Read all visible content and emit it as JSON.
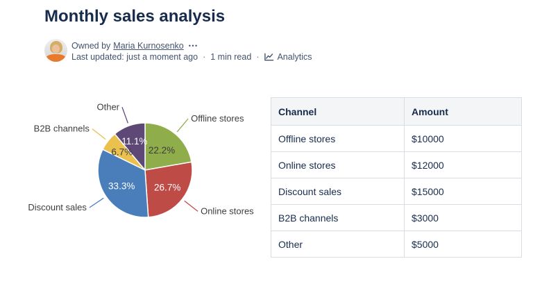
{
  "page": {
    "title": "Monthly sales analysis"
  },
  "byline": {
    "owned_by_prefix": "Owned by",
    "owner_name": "Maria Kurnosenko",
    "more_options": "•••",
    "last_updated": "Last updated: just a moment ago",
    "read_time": "1 min read",
    "separator": "·",
    "analytics_label": "Analytics"
  },
  "chart_data": {
    "type": "pie",
    "title": "",
    "labels": [
      "Offline stores",
      "Online stores",
      "Discount sales",
      "B2B channels",
      "Other"
    ],
    "values": [
      10000,
      12000,
      15000,
      3000,
      5000
    ],
    "percent_labels": [
      "22.2%",
      "26.7%",
      "33.3%",
      "6.7%",
      "11.1%"
    ],
    "colors": [
      "#8fad4b",
      "#bf4b47",
      "#4a7ebb",
      "#eac14e",
      "#5d4876"
    ],
    "start_angle_deg": 0,
    "direction": "clockwise",
    "labels_style": "outside-callouts-with-leader-lines",
    "percent_text_dark": "#3d3d3d",
    "percent_text_light": "#ffffff"
  },
  "table": {
    "headers": [
      "Channel",
      "Amount"
    ],
    "rows": [
      [
        "Offline stores",
        "$10000"
      ],
      [
        "Online stores",
        "$12000"
      ],
      [
        "Discount sales",
        "$15000"
      ],
      [
        "B2B channels",
        "$3000"
      ],
      [
        "Other",
        "$5000"
      ]
    ]
  },
  "colors": {
    "heading_text": "#172b4d",
    "byline_text": "#42526e",
    "table_header_bg": "#f4f5f7",
    "table_border": "#d8dce3",
    "avatar_accent": "#e87a2e"
  }
}
